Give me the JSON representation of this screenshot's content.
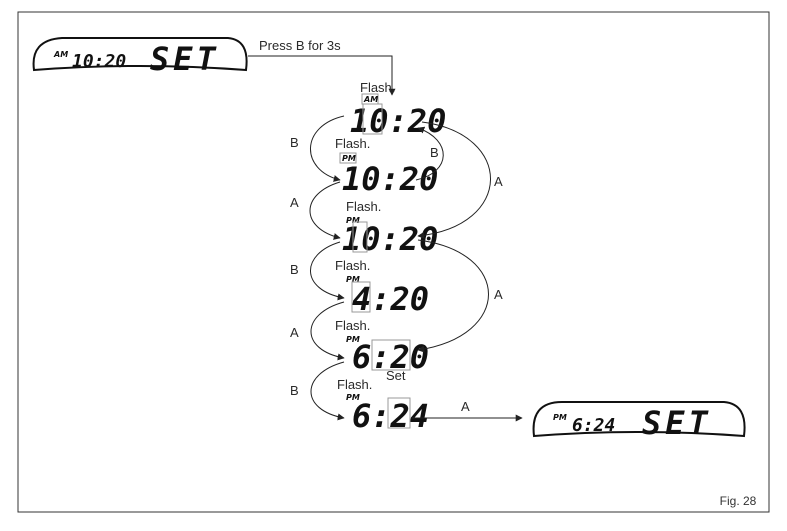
{
  "figure_label": "Fig. 28",
  "top_display": {
    "indicator": "AM",
    "time": "10:20",
    "mode": "SET"
  },
  "press_instruction": "Press B for 3s",
  "steps": [
    {
      "status": "Flash.",
      "indicator": "AM",
      "time": "10:20"
    },
    {
      "status": "Flash.",
      "indicator": "PM",
      "time": "10:20"
    },
    {
      "status": "Flash.",
      "indicator": "PM",
      "time": "10:20"
    },
    {
      "status": "Flash.",
      "indicator": "PM",
      "time": "4:20"
    },
    {
      "status": "Flash.",
      "indicator": "PM",
      "time": "6:20"
    },
    {
      "status": "Flash.",
      "indicator": "PM",
      "time": "6:24",
      "extra": "Set"
    }
  ],
  "left_buttons": [
    "B",
    "A",
    "B",
    "A",
    "B"
  ],
  "right_loop_labels": {
    "b_loop": "B",
    "a_loop_1": "A",
    "a_loop_2": "A"
  },
  "final_arrow_label": "A",
  "final_display": {
    "indicator": "PM",
    "time": "6:24",
    "mode": "SET"
  }
}
